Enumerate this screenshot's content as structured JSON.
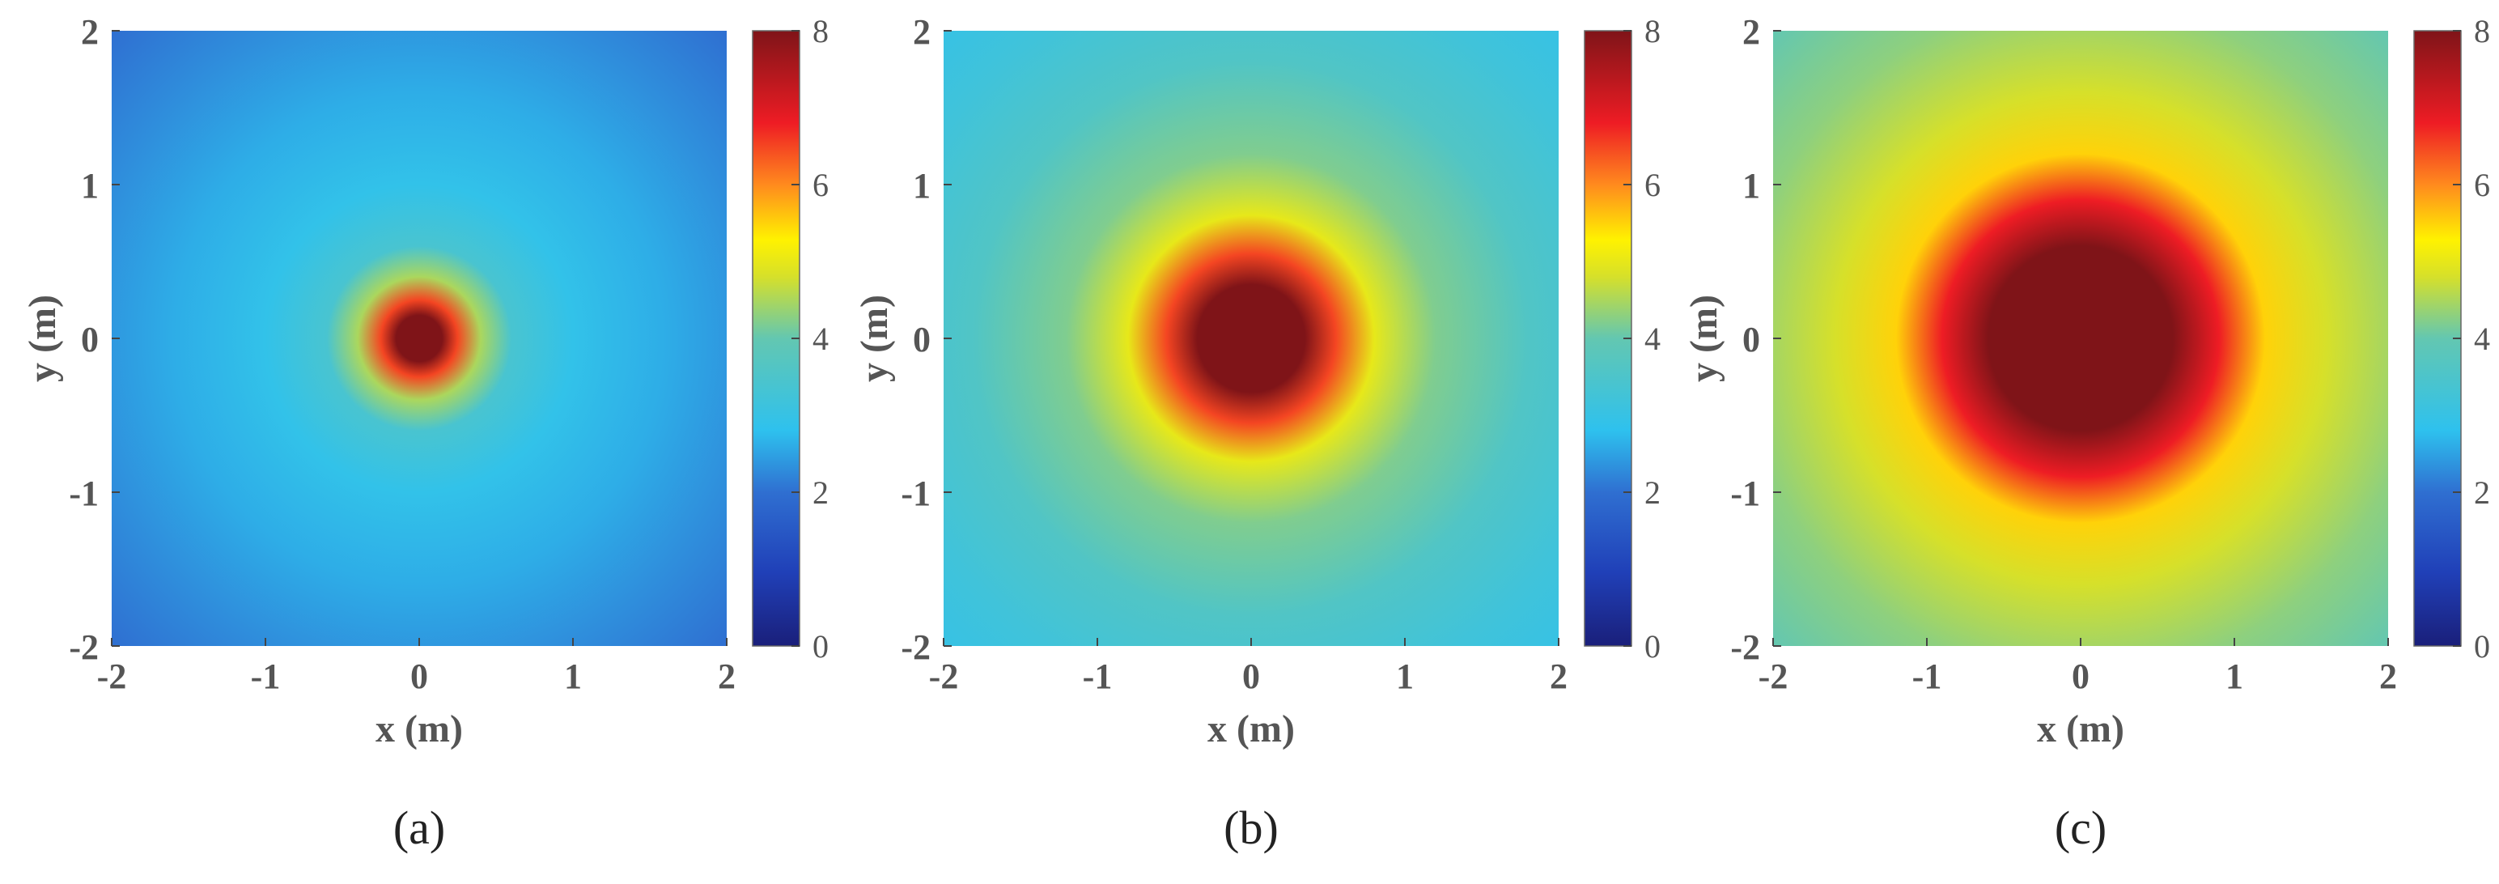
{
  "chart_data": [
    {
      "type": "heatmap",
      "panel_label": "(a)",
      "xlabel": "x (m)",
      "ylabel": "y (m)",
      "xlim": [
        -2,
        2
      ],
      "ylim": [
        -2,
        2
      ],
      "x_ticks": [
        "-2",
        "-1",
        "0",
        "1",
        "2"
      ],
      "y_ticks": [
        "2",
        "1",
        "0",
        "-1",
        "-2"
      ],
      "colorbar": {
        "range": [
          0,
          8
        ],
        "ticks": [
          "8",
          "6",
          "4",
          "2",
          "0"
        ]
      },
      "pattern": "radially symmetric about (0,0)",
      "radial_profile": [
        {
          "r": 0.0,
          "v": 8.0
        },
        {
          "r": 0.15,
          "v": 8.0
        },
        {
          "r": 0.25,
          "v": 6.5
        },
        {
          "r": 0.4,
          "v": 4.5
        },
        {
          "r": 0.6,
          "v": 3.4
        },
        {
          "r": 1.0,
          "v": 2.9
        },
        {
          "r": 1.6,
          "v": 2.6
        },
        {
          "r": 2.2,
          "v": 2.3
        },
        {
          "r": 2.83,
          "v": 2.0
        }
      ]
    },
    {
      "type": "heatmap",
      "panel_label": "(b)",
      "xlabel": "x (m)",
      "ylabel": "y (m)",
      "xlim": [
        -2,
        2
      ],
      "ylim": [
        -2,
        2
      ],
      "x_ticks": [
        "-2",
        "-1",
        "0",
        "1",
        "2"
      ],
      "y_ticks": [
        "2",
        "1",
        "0",
        "-1",
        "-2"
      ],
      "colorbar": {
        "range": [
          0,
          8
        ],
        "ticks": [
          "8",
          "6",
          "4",
          "2",
          "0"
        ]
      },
      "pattern": "radially symmetric about (0,0)",
      "radial_profile": [
        {
          "r": 0.0,
          "v": 8.0
        },
        {
          "r": 0.35,
          "v": 8.0
        },
        {
          "r": 0.55,
          "v": 6.5
        },
        {
          "r": 0.8,
          "v": 5.0
        },
        {
          "r": 1.2,
          "v": 4.2
        },
        {
          "r": 1.8,
          "v": 3.6
        },
        {
          "r": 2.4,
          "v": 3.2
        },
        {
          "r": 2.83,
          "v": 3.0
        }
      ]
    },
    {
      "type": "heatmap",
      "panel_label": "(c)",
      "xlabel": "x (m)",
      "ylabel": "y (m)",
      "xlim": [
        -2,
        2
      ],
      "ylim": [
        -2,
        2
      ],
      "x_ticks": [
        "-2",
        "-1",
        "0",
        "1",
        "2"
      ],
      "y_ticks": [
        "2",
        "1",
        "0",
        "-1",
        "-2"
      ],
      "colorbar": {
        "range": [
          0,
          8
        ],
        "ticks": [
          "8",
          "6",
          "4",
          "2",
          "0"
        ]
      },
      "pattern": "radially symmetric about (0,0)",
      "radial_profile": [
        {
          "r": 0.0,
          "v": 8.0
        },
        {
          "r": 0.6,
          "v": 8.0
        },
        {
          "r": 0.9,
          "v": 6.8
        },
        {
          "r": 1.2,
          "v": 5.5
        },
        {
          "r": 1.6,
          "v": 4.8
        },
        {
          "r": 2.2,
          "v": 4.3
        },
        {
          "r": 2.83,
          "v": 4.0
        }
      ]
    }
  ]
}
